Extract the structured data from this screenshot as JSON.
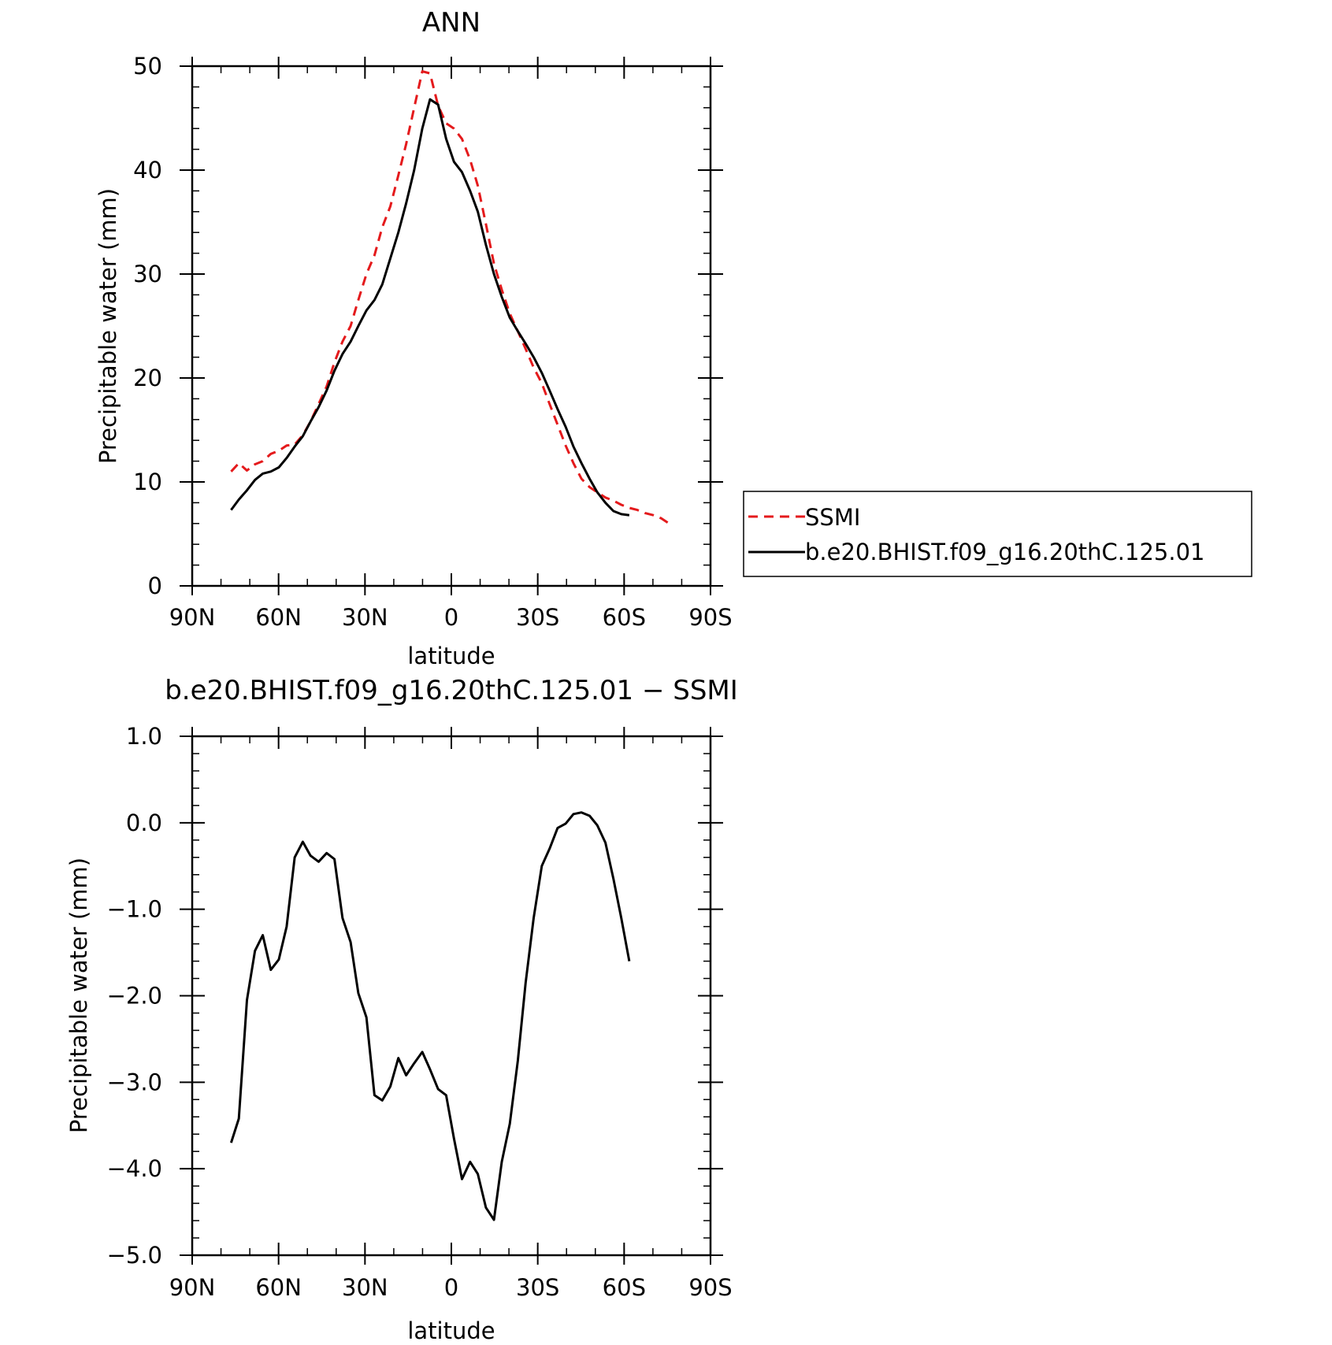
{
  "chart_data": [
    {
      "type": "line",
      "title": "ANN",
      "xlabel": "latitude",
      "ylabel": "Precipitable water (mm)",
      "xlim": [
        90,
        -90
      ],
      "ylim": [
        0,
        50
      ],
      "x_ticks": [
        {
          "value": 90,
          "label": "90N"
        },
        {
          "value": 60,
          "label": "60N"
        },
        {
          "value": 30,
          "label": "30N"
        },
        {
          "value": 0,
          "label": "0"
        },
        {
          "value": -30,
          "label": "30S"
        },
        {
          "value": -60,
          "label": "60S"
        },
        {
          "value": -90,
          "label": "90S"
        }
      ],
      "y_ticks": [
        {
          "value": 0,
          "label": "0"
        },
        {
          "value": 10,
          "label": "10"
        },
        {
          "value": 20,
          "label": "20"
        },
        {
          "value": 30,
          "label": "30"
        },
        {
          "value": 40,
          "label": "40"
        },
        {
          "value": 50,
          "label": "50"
        }
      ],
      "legend": "right",
      "series": [
        {
          "name": "SSMI",
          "color": "#e41a1c",
          "style": "dashed",
          "x": [
            76.5,
            73.8,
            71.0,
            68.2,
            65.5,
            62.7,
            59.9,
            57.2,
            54.4,
            51.6,
            48.9,
            46.1,
            43.3,
            40.6,
            37.8,
            35.0,
            32.3,
            29.5,
            26.7,
            24.0,
            21.2,
            18.4,
            15.7,
            12.9,
            10.1,
            7.4,
            4.6,
            1.8,
            -0.9,
            -3.7,
            -6.5,
            -9.2,
            -12.0,
            -14.8,
            -17.5,
            -20.3,
            -23.1,
            -25.8,
            -28.6,
            -31.4,
            -34.1,
            -36.9,
            -39.7,
            -42.4,
            -45.2,
            -48.0,
            -50.7,
            -53.5,
            -56.3,
            -59.0,
            -61.8,
            -64.6,
            -67.3,
            -70.1,
            -72.9,
            -75.6
          ],
          "values": [
            11.0,
            11.8,
            11.1,
            11.7,
            12.0,
            12.7,
            13.0,
            13.5,
            13.6,
            14.5,
            15.8,
            17.5,
            19.2,
            21.5,
            23.5,
            25.0,
            27.5,
            30.0,
            31.8,
            34.5,
            36.5,
            39.5,
            42.5,
            46.0,
            49.5,
            49.3,
            46.2,
            44.5,
            44.0,
            43.0,
            41.0,
            38.5,
            34.8,
            31.0,
            28.5,
            26.2,
            24.5,
            22.8,
            21.0,
            19.5,
            17.5,
            15.5,
            13.5,
            11.8,
            10.3,
            9.5,
            9.0,
            8.5,
            8.2,
            7.8,
            7.5,
            7.3,
            7.0,
            6.8,
            6.5,
            6.0
          ]
        },
        {
          "name": "b.e20.BHIST.f09_g16.20thC.125.01",
          "color": "#000000",
          "style": "solid",
          "x": [
            76.5,
            73.8,
            71.0,
            68.2,
            65.5,
            62.7,
            59.9,
            57.2,
            54.4,
            51.6,
            48.9,
            46.1,
            43.3,
            40.6,
            37.8,
            35.0,
            32.3,
            29.5,
            26.7,
            24.0,
            21.2,
            18.4,
            15.7,
            12.9,
            10.1,
            7.4,
            4.6,
            1.8,
            -0.9,
            -3.7,
            -6.5,
            -9.2,
            -12.0,
            -14.8,
            -17.5,
            -20.3,
            -23.1,
            -25.8,
            -28.6,
            -31.4,
            -34.1,
            -36.9,
            -39.7,
            -42.4,
            -45.2,
            -48.0,
            -50.7,
            -53.5,
            -56.3,
            -59.0,
            -61.8
          ],
          "values": [
            7.3,
            8.3,
            9.2,
            10.2,
            10.8,
            11.0,
            11.4,
            12.3,
            13.4,
            14.4,
            15.8,
            17.2,
            18.8,
            20.7,
            22.3,
            23.5,
            25.0,
            26.5,
            27.5,
            29.0,
            31.5,
            34.0,
            36.8,
            40.0,
            44.0,
            46.8,
            46.3,
            43.0,
            40.8,
            39.8,
            38.0,
            36.0,
            32.8,
            30.0,
            27.8,
            25.8,
            24.5,
            23.3,
            22.0,
            20.5,
            18.8,
            17.0,
            15.3,
            13.4,
            11.8,
            10.3,
            9.0,
            8.0,
            7.2,
            6.9,
            6.8
          ]
        }
      ]
    },
    {
      "type": "line",
      "title": "b.e20.BHIST.f09_g16.20thC.125.01 − SSMI",
      "xlabel": "latitude",
      "ylabel": "Precipitable water (mm)",
      "xlim": [
        90,
        -90
      ],
      "ylim": [
        -5,
        1
      ],
      "x_ticks": [
        {
          "value": 90,
          "label": "90N"
        },
        {
          "value": 60,
          "label": "60N"
        },
        {
          "value": 30,
          "label": "30N"
        },
        {
          "value": 0,
          "label": "0"
        },
        {
          "value": -30,
          "label": "30S"
        },
        {
          "value": -60,
          "label": "60S"
        },
        {
          "value": -90,
          "label": "90S"
        }
      ],
      "y_ticks": [
        {
          "value": 1,
          "label": "1.0"
        },
        {
          "value": 0,
          "label": "0.0"
        },
        {
          "value": -1,
          "label": "−1.0"
        },
        {
          "value": -2,
          "label": "−2.0"
        },
        {
          "value": -3,
          "label": "−3.0"
        },
        {
          "value": -4,
          "label": "−4.0"
        },
        {
          "value": -5,
          "label": "−5.0"
        }
      ],
      "series": [
        {
          "color": "#000000",
          "style": "solid",
          "x": [
            76.5,
            73.8,
            71.0,
            68.2,
            65.5,
            62.7,
            59.9,
            57.2,
            54.4,
            51.6,
            48.9,
            46.1,
            43.3,
            40.6,
            37.8,
            35.0,
            32.3,
            29.5,
            26.7,
            24.0,
            21.2,
            18.4,
            15.7,
            12.9,
            10.1,
            7.4,
            4.6,
            1.8,
            -0.9,
            -3.7,
            -6.5,
            -9.2,
            -12.0,
            -14.8,
            -17.5,
            -20.3,
            -23.1,
            -25.8,
            -28.6,
            -31.4,
            -34.1,
            -36.9,
            -39.7,
            -42.4,
            -45.2,
            -48.0,
            -50.7,
            -53.5,
            -56.3,
            -59.0,
            -61.8
          ],
          "values": [
            -3.7,
            -3.42,
            -2.05,
            -1.48,
            -1.3,
            -1.7,
            -1.58,
            -1.2,
            -0.4,
            -0.22,
            -0.38,
            -0.45,
            -0.35,
            -0.42,
            -1.1,
            -1.38,
            -1.97,
            -2.25,
            -3.15,
            -3.21,
            -3.05,
            -2.72,
            -2.92,
            -2.78,
            -2.65,
            -2.85,
            -3.08,
            -3.15,
            -3.65,
            -4.12,
            -3.92,
            -4.06,
            -4.45,
            -4.59,
            -3.92,
            -3.48,
            -2.75,
            -1.85,
            -1.1,
            -0.5,
            -0.3,
            -0.06,
            -0.01,
            0.1,
            0.12,
            0.08,
            -0.03,
            -0.23,
            -0.65,
            -1.1,
            -1.6
          ]
        }
      ]
    }
  ]
}
